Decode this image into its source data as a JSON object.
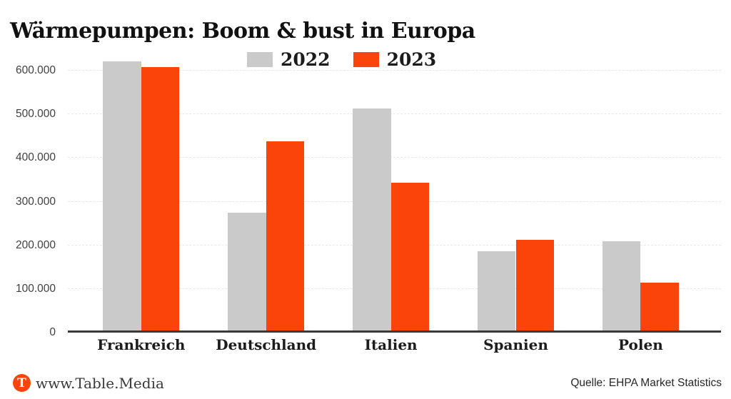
{
  "title": "Wärmepumpen: Boom & bust in Europa",
  "chart_data": {
    "type": "bar",
    "title": "Wärmepumpen: Boom & bust in Europa",
    "categories": [
      "Frankreich",
      "Deutschland",
      "Italien",
      "Spanien",
      "Polen"
    ],
    "series": [
      {
        "name": "2022",
        "color": "#CACACA",
        "values": [
          621000,
          275000,
          513000,
          187000,
          209000
        ]
      },
      {
        "name": "2023",
        "color": "#FB4409",
        "values": [
          609000,
          438000,
          344000,
          212000,
          114000
        ]
      }
    ],
    "xlabel": "",
    "ylabel": "",
    "y_axis": {
      "min": 0,
      "max": 600000,
      "tick_step": 100000,
      "tick_values": [
        0,
        100000,
        200000,
        300000,
        400000,
        500000,
        600000
      ],
      "tick_labels": [
        "0",
        "100.000",
        "200.000",
        "300.000",
        "400.000",
        "500.000",
        "600.000"
      ]
    },
    "grid": "horizontal-dashed",
    "legend_position": "top-center"
  },
  "footer": {
    "logo_letter": "T",
    "brand_url": "www.Table.Media",
    "source": "Quelle: EHPA Market Statistics"
  },
  "colors": {
    "accent_orange": "#FB4409",
    "bar_gray": "#CACACA",
    "axis_line": "#3a3a3a",
    "gridline": "#e7e7e7",
    "text_dark": "#111111"
  }
}
